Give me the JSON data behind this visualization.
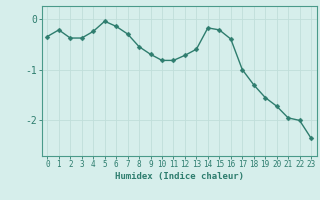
{
  "x": [
    0,
    1,
    2,
    3,
    4,
    5,
    6,
    7,
    8,
    9,
    10,
    11,
    12,
    13,
    14,
    15,
    16,
    17,
    18,
    19,
    20,
    21,
    22,
    23
  ],
  "y": [
    -0.35,
    -0.22,
    -0.38,
    -0.38,
    -0.25,
    -0.05,
    -0.15,
    -0.3,
    -0.55,
    -0.7,
    -0.82,
    -0.82,
    -0.72,
    -0.6,
    -0.18,
    -0.22,
    -0.4,
    -1.0,
    -1.3,
    -1.55,
    -1.72,
    -1.95,
    -2.0,
    -2.35
  ],
  "line_color": "#2e7d6e",
  "marker_color": "#2e7d6e",
  "bg_color": "#d6eeeb",
  "grid_color": "#c0deda",
  "axis_color": "#4a9a8a",
  "tick_color": "#2e7d6e",
  "xlabel": "Humidex (Indice chaleur)",
  "yticks": [
    0,
    -1,
    -2
  ],
  "ylim": [
    -2.7,
    0.25
  ],
  "xlim": [
    -0.5,
    23.5
  ],
  "font_color": "#2e7d6e",
  "line_width": 1.0,
  "marker_size": 2.5,
  "tick_fontsize": 5.5,
  "label_fontsize": 6.5,
  "ytick_fontsize": 7
}
